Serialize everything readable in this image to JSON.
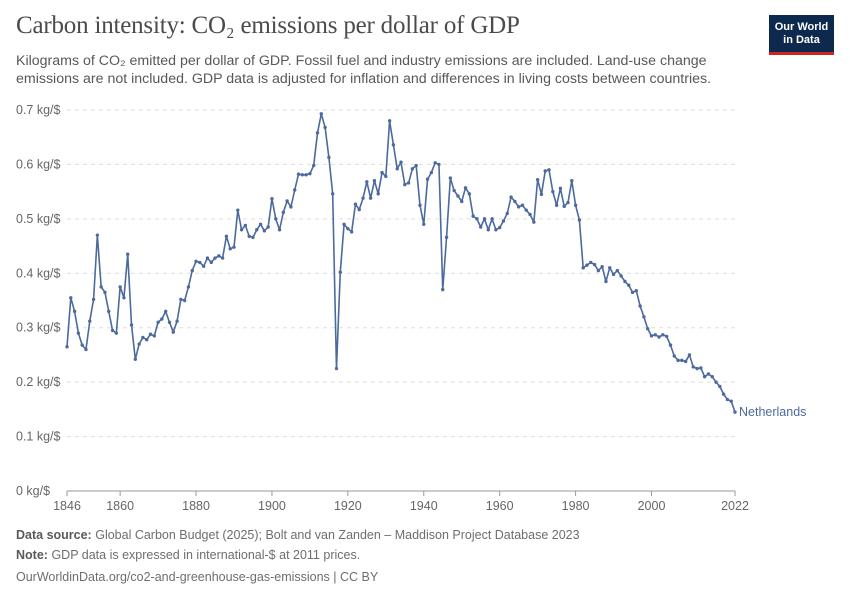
{
  "header": {
    "title": "Carbon intensity: CO₂ emissions per dollar of GDP",
    "subtitle": "Kilograms of CO₂ emitted per dollar of GDP. Fossil fuel and industry emissions are included. Land-use change emissions are not included. GDP data is adjusted for inflation and differences in living costs between countries."
  },
  "logo": {
    "line1": "Our World",
    "line2": "in Data",
    "bg": "#0d2a4e",
    "accent": "#ce261e"
  },
  "footer": {
    "source_label": "Data source:",
    "source_text": "Global Carbon Budget (2025); Bolt and van Zanden – Maddison Project Database 2023",
    "note_label": "Note:",
    "note_text": "GDP data is expressed in international-$ at 2011 prices.",
    "url_text": "OurWorldinData.org/co2-and-greenhouse-gas-emissions | CC BY"
  },
  "chart_data": {
    "type": "line",
    "title": "Carbon intensity: CO₂ emissions per dollar of GDP",
    "xlabel": "",
    "ylabel": "",
    "xlim": [
      1846,
      2022
    ],
    "ylim": [
      0,
      0.7
    ],
    "x_ticks": [
      1846,
      1860,
      1880,
      1900,
      1920,
      1940,
      1960,
      1980,
      2000,
      2022
    ],
    "y_ticks": [
      0,
      0.1,
      0.2,
      0.3,
      0.4,
      0.5,
      0.6,
      0.7
    ],
    "y_tick_labels": [
      "0 kg/$",
      "0.1 kg/$",
      "0.2 kg/$",
      "0.3 kg/$",
      "0.4 kg/$",
      "0.5 kg/$",
      "0.6 kg/$",
      "0.7 kg/$"
    ],
    "grid": "horizontal-dashed",
    "series_color": "#4c6a9c",
    "series": [
      {
        "name": "Netherlands",
        "x": [
          1846,
          1847,
          1848,
          1849,
          1850,
          1851,
          1852,
          1853,
          1854,
          1855,
          1856,
          1857,
          1858,
          1859,
          1860,
          1861,
          1862,
          1863,
          1864,
          1865,
          1866,
          1867,
          1868,
          1869,
          1870,
          1871,
          1872,
          1873,
          1874,
          1875,
          1876,
          1877,
          1878,
          1879,
          1880,
          1881,
          1882,
          1883,
          1884,
          1885,
          1886,
          1887,
          1888,
          1889,
          1890,
          1891,
          1892,
          1893,
          1894,
          1895,
          1896,
          1897,
          1898,
          1899,
          1900,
          1901,
          1902,
          1903,
          1904,
          1905,
          1906,
          1907,
          1908,
          1909,
          1910,
          1911,
          1912,
          1913,
          1914,
          1915,
          1916,
          1917,
          1918,
          1919,
          1920,
          1921,
          1922,
          1923,
          1924,
          1925,
          1926,
          1927,
          1928,
          1929,
          1930,
          1931,
          1932,
          1933,
          1934,
          1935,
          1936,
          1937,
          1938,
          1939,
          1940,
          1941,
          1942,
          1943,
          1944,
          1945,
          1946,
          1947,
          1948,
          1949,
          1950,
          1951,
          1952,
          1953,
          1954,
          1955,
          1956,
          1957,
          1958,
          1959,
          1960,
          1961,
          1962,
          1963,
          1964,
          1965,
          1966,
          1967,
          1968,
          1969,
          1970,
          1971,
          1972,
          1973,
          1974,
          1975,
          1976,
          1977,
          1978,
          1979,
          1980,
          1981,
          1982,
          1983,
          1984,
          1985,
          1986,
          1987,
          1988,
          1989,
          1990,
          1991,
          1992,
          1993,
          1994,
          1995,
          1996,
          1997,
          1998,
          1999,
          2000,
          2001,
          2002,
          2003,
          2004,
          2005,
          2006,
          2007,
          2008,
          2009,
          2010,
          2011,
          2012,
          2013,
          2014,
          2015,
          2016,
          2017,
          2018,
          2019,
          2020,
          2021,
          2022
        ],
        "values": [
          0.265,
          0.355,
          0.33,
          0.29,
          0.268,
          0.26,
          0.312,
          0.352,
          0.47,
          0.375,
          0.365,
          0.33,
          0.295,
          0.29,
          0.375,
          0.355,
          0.435,
          0.305,
          0.242,
          0.27,
          0.282,
          0.278,
          0.288,
          0.285,
          0.31,
          0.316,
          0.33,
          0.31,
          0.292,
          0.312,
          0.352,
          0.35,
          0.375,
          0.405,
          0.422,
          0.42,
          0.413,
          0.428,
          0.42,
          0.428,
          0.432,
          0.428,
          0.468,
          0.445,
          0.448,
          0.516,
          0.48,
          0.488,
          0.468,
          0.466,
          0.48,
          0.49,
          0.478,
          0.485,
          0.537,
          0.5,
          0.48,
          0.512,
          0.533,
          0.522,
          0.553,
          0.582,
          0.581,
          0.581,
          0.583,
          0.598,
          0.658,
          0.693,
          0.668,
          0.613,
          0.546,
          0.225,
          0.402,
          0.49,
          0.482,
          0.476,
          0.527,
          0.517,
          0.538,
          0.568,
          0.538,
          0.57,
          0.546,
          0.585,
          0.578,
          0.68,
          0.636,
          0.592,
          0.604,
          0.563,
          0.566,
          0.592,
          0.598,
          0.525,
          0.49,
          0.573,
          0.585,
          0.603,
          0.6,
          0.37,
          0.466,
          0.575,
          0.552,
          0.542,
          0.532,
          0.557,
          0.546,
          0.505,
          0.5,
          0.485,
          0.5,
          0.48,
          0.5,
          0.48,
          0.484,
          0.496,
          0.51,
          0.54,
          0.532,
          0.522,
          0.525,
          0.516,
          0.508,
          0.494,
          0.572,
          0.545,
          0.588,
          0.59,
          0.55,
          0.525,
          0.556,
          0.523,
          0.53,
          0.57,
          0.525,
          0.498,
          0.41,
          0.415,
          0.42,
          0.416,
          0.405,
          0.412,
          0.385,
          0.41,
          0.398,
          0.405,
          0.395,
          0.385,
          0.378,
          0.365,
          0.368,
          0.34,
          0.32,
          0.298,
          0.285,
          0.287,
          0.283,
          0.287,
          0.284,
          0.268,
          0.248,
          0.24,
          0.24,
          0.238,
          0.25,
          0.228,
          0.225,
          0.226,
          0.21,
          0.215,
          0.21,
          0.2,
          0.192,
          0.178,
          0.168,
          0.165,
          0.145
        ]
      }
    ]
  }
}
